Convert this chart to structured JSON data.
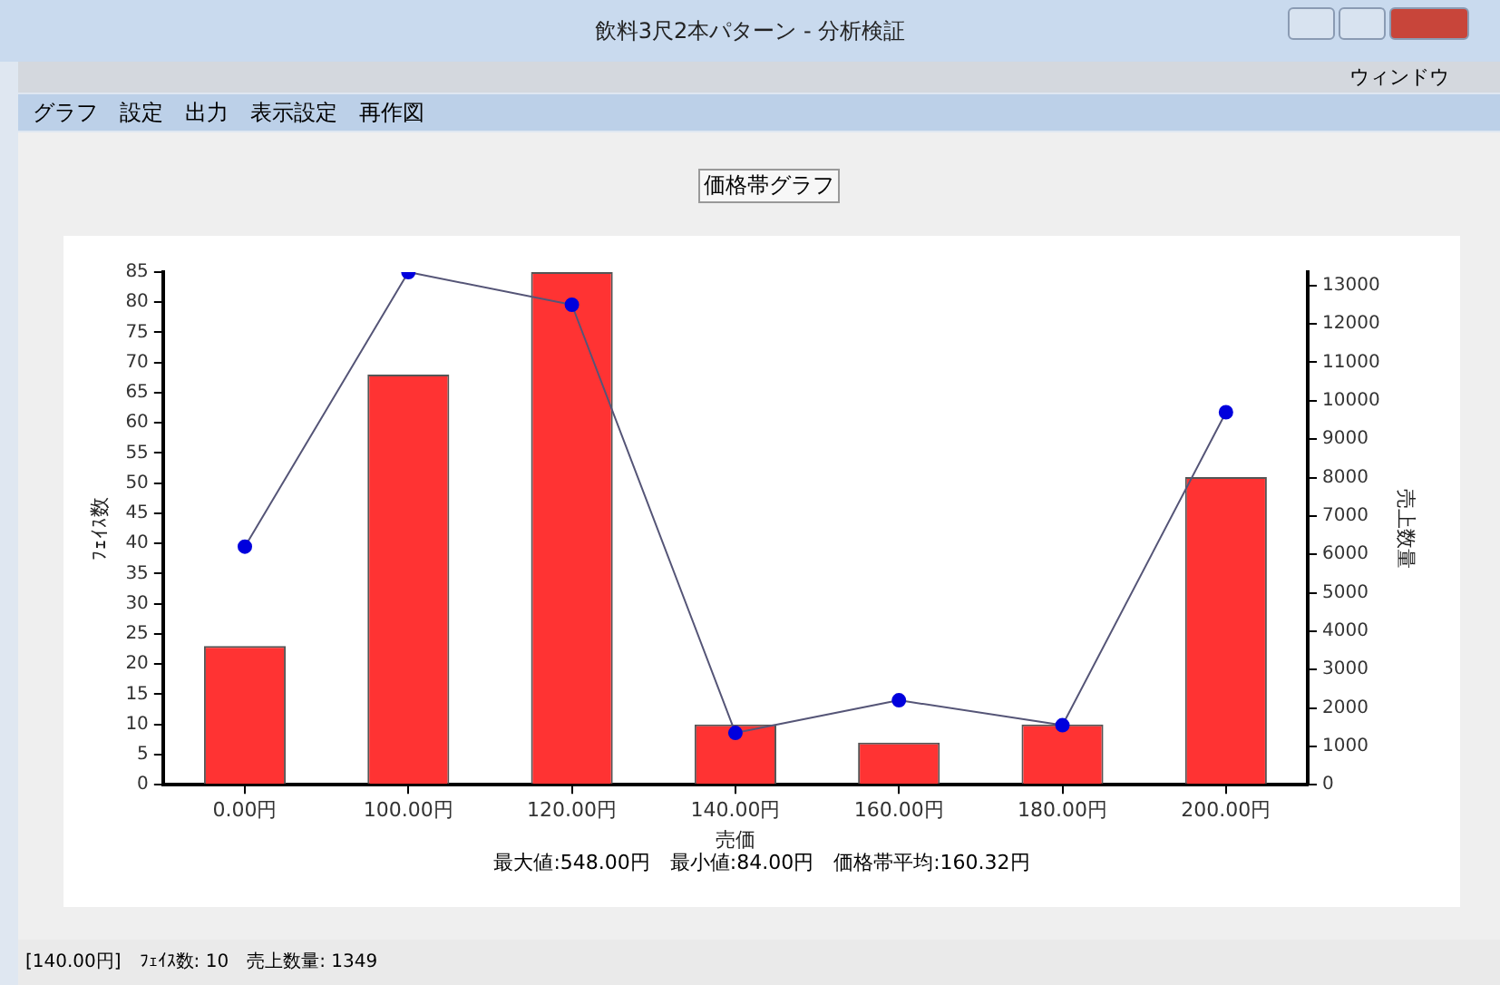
{
  "chart_data": {
    "type": "bar",
    "title": "価格帯グラフ",
    "xlabel": "売価",
    "ylabel": "ﾌｪｲｽ数",
    "y2label": "売上数量",
    "categories": [
      "0.00円",
      "100.00円",
      "120.00円",
      "140.00円",
      "160.00円",
      "180.00円",
      "200.00円"
    ],
    "series": [
      {
        "name": null,
        "color": "#ff3333",
        "values": [
          23,
          68,
          85,
          10,
          7,
          10,
          51
        ]
      },
      {
        "name": null,
        "type": "line",
        "axis": "y2",
        "color": "#0000dd",
        "values": [
          6200,
          13350,
          12500,
          1349,
          2200,
          1550,
          9700
        ]
      }
    ],
    "ylim": [
      0,
      85
    ],
    "yticks": [
      0,
      5,
      10,
      15,
      20,
      25,
      30,
      35,
      40,
      45,
      50,
      55,
      60,
      65,
      70,
      75,
      80,
      85
    ],
    "y2lim": [
      0,
      13350
    ],
    "y2ticks": [
      0,
      1000,
      2000,
      3000,
      4000,
      5000,
      6000,
      7000,
      8000,
      9000,
      10000,
      11000,
      12000,
      13000
    ],
    "grid": false,
    "legend": false,
    "marker": "circle",
    "annotations": [
      "飲料3尺2本パターン - 分析検証",
      "グラフ　設定　出力　表示設定　再作図",
      "ウィンドウ",
      "最大値:548.00円　最小値:84.00円　価格帯平均:160.32円",
      "[140.00円]　ﾌｪｲｽ数: 10　売上数量: 1349"
    ]
  }
}
